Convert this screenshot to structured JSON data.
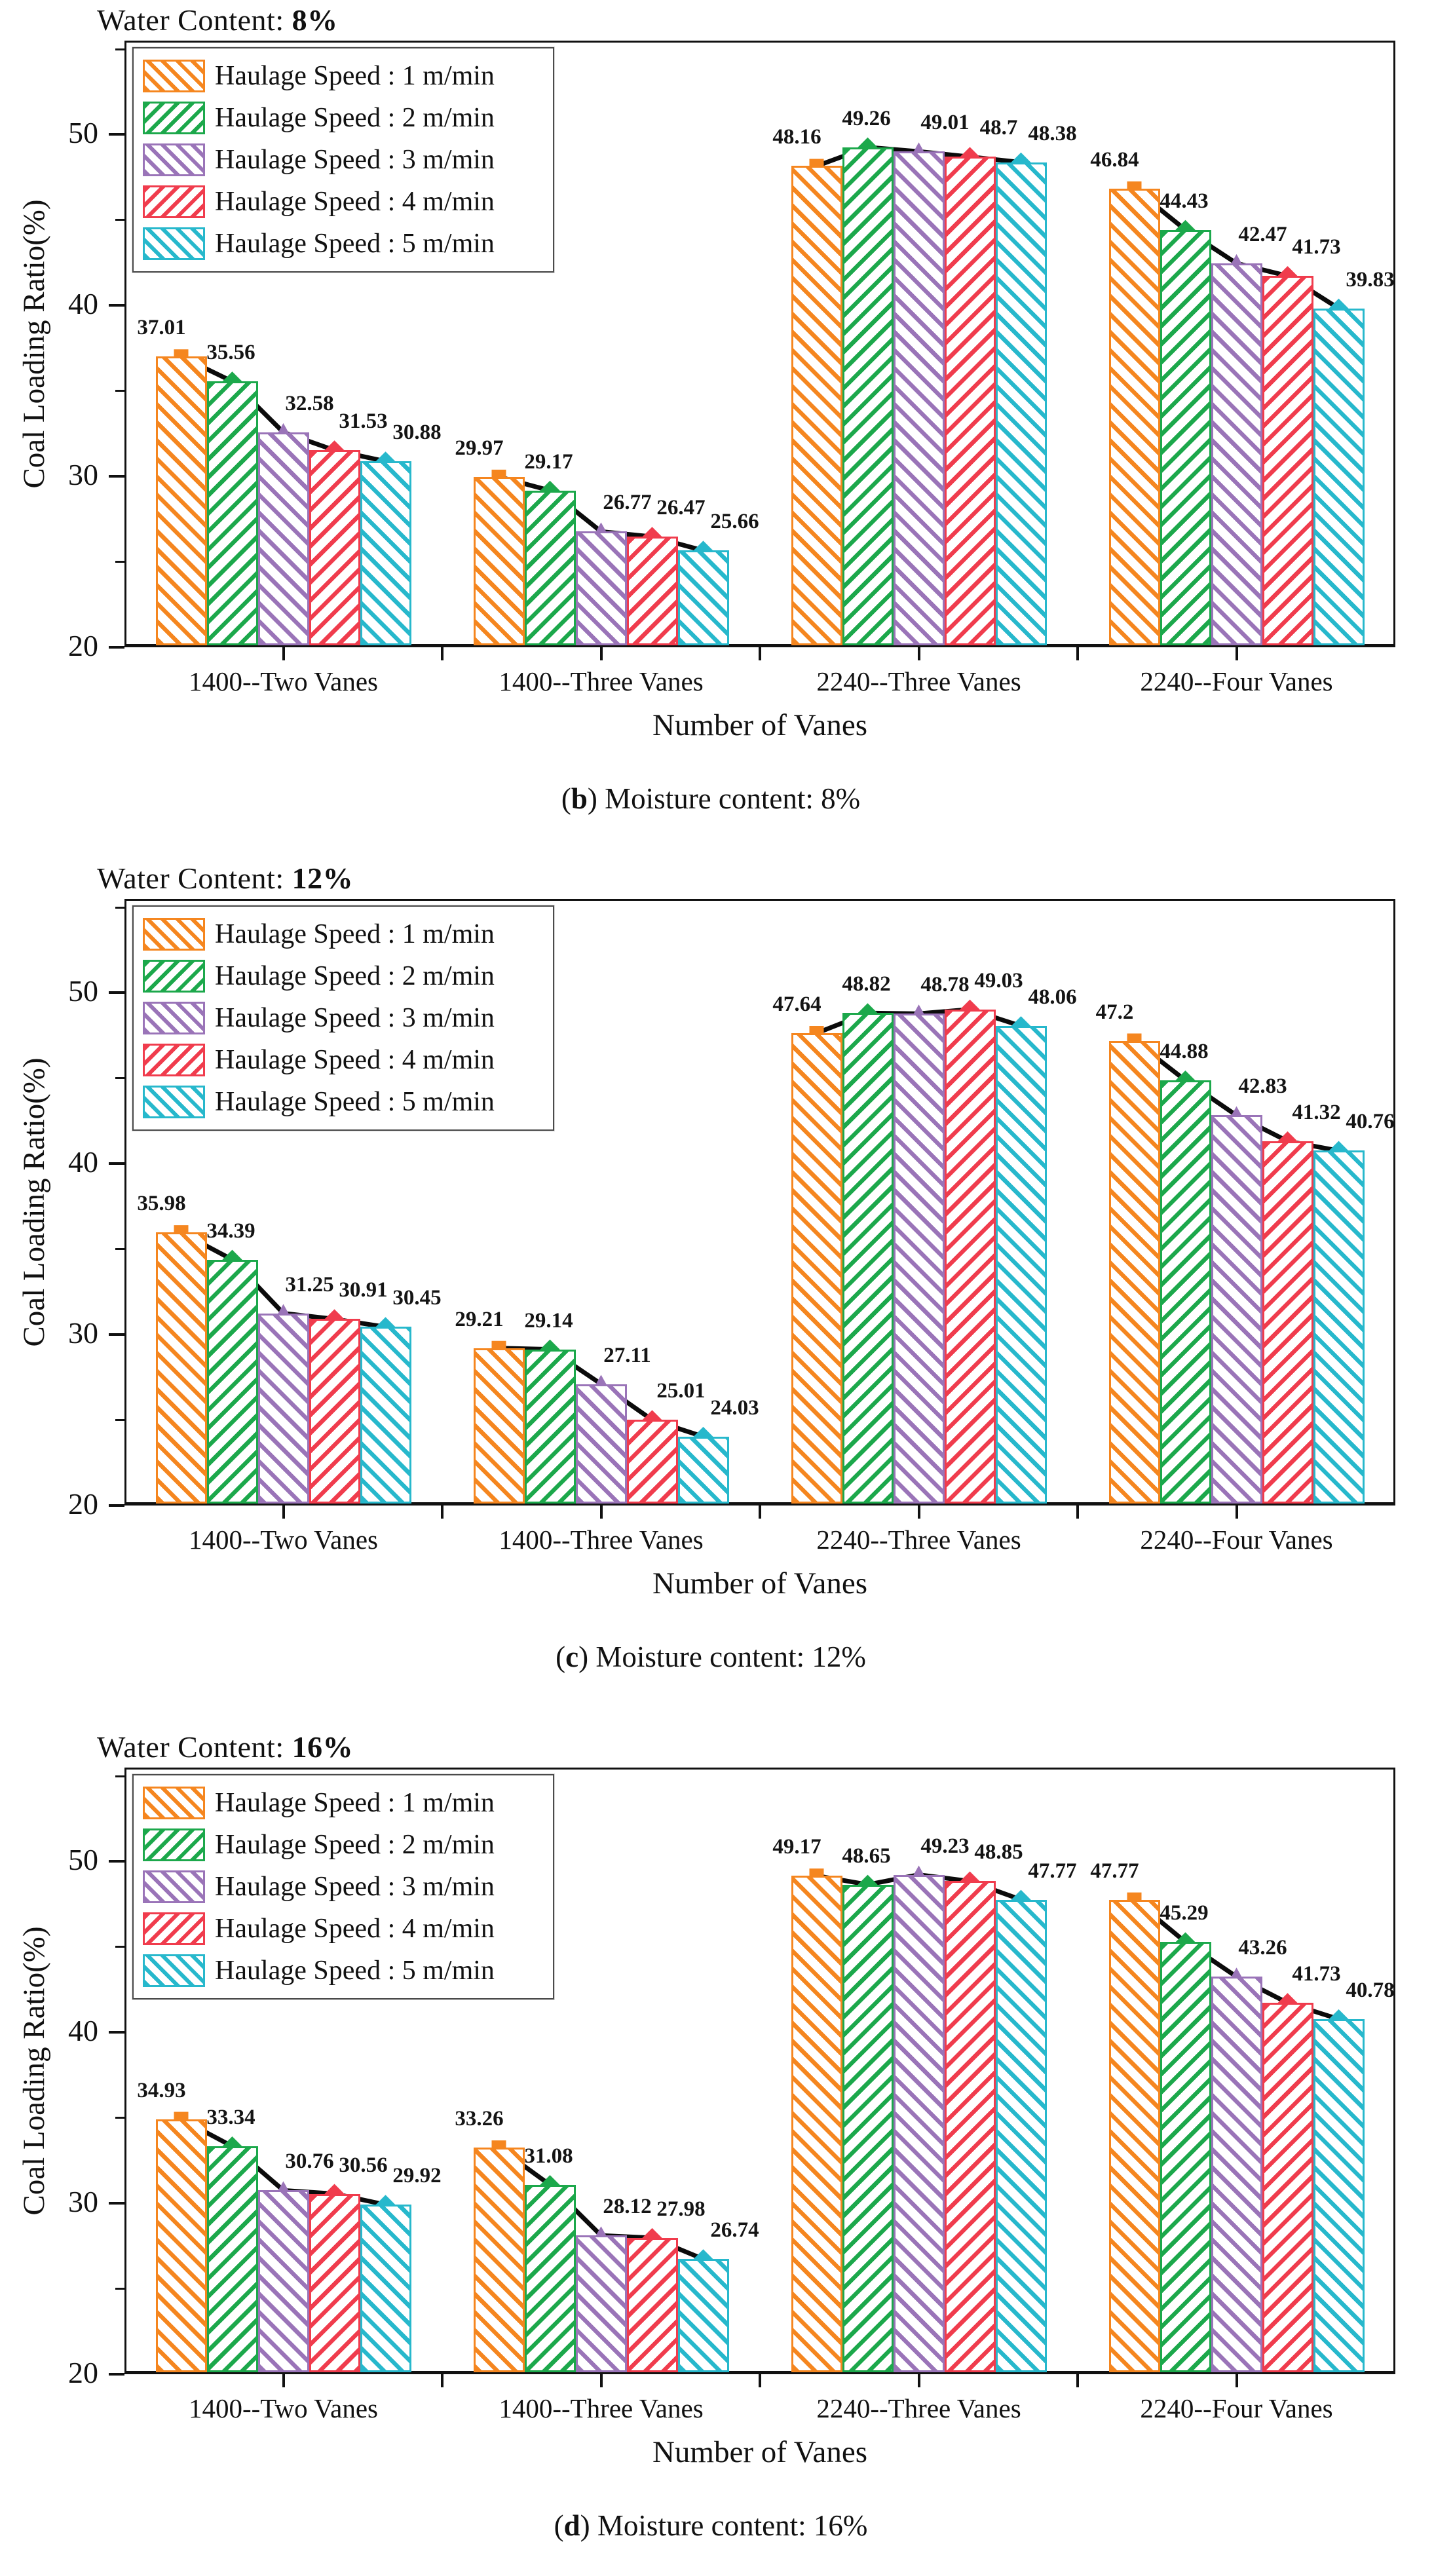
{
  "figure": {
    "captions": [
      {
        "pre": "(",
        "letter": "b",
        "rest": ") Moisture content: 8%"
      },
      {
        "pre": "(",
        "letter": "c",
        "rest": ") Moisture content: 12%"
      },
      {
        "pre": "(",
        "letter": "d",
        "rest": ") Moisture content: 16%"
      }
    ]
  },
  "chart_data": [
    {
      "type": "bar",
      "title": "Water Content: 8%",
      "title_plain": "Water Content: ",
      "title_bold": "8%",
      "xlabel": "Number of Vanes",
      "ylabel": "Coal Loading Ratio(%)",
      "ylim": [
        20,
        55.5
      ],
      "yticks_major": [
        20,
        30,
        40,
        50
      ],
      "yticks_minor": [
        25,
        35,
        45,
        55
      ],
      "grid": false,
      "legend_position": "upper-left",
      "overlay": "black trend line with markers across the 5 bars of each group",
      "categories": [
        "1400--Two Vanes",
        "1400--Three Vanes",
        "2240--Three Vanes",
        "2240--Four Vanes"
      ],
      "series": [
        {
          "name": "Haulage Speed : 1 m/min",
          "color": "#F5861F",
          "hatch": "\\",
          "marker": "square",
          "values": [
            37.01,
            29.97,
            48.16,
            46.84
          ]
        },
        {
          "name": "Haulage Speed : 2 m/min",
          "color": "#1CA84B",
          "hatch": "/",
          "marker": "diamond",
          "values": [
            35.56,
            29.17,
            49.26,
            44.43
          ]
        },
        {
          "name": "Haulage Speed : 3 m/min",
          "color": "#9A74B8",
          "hatch": "\\",
          "marker": "triangle",
          "values": [
            32.58,
            26.77,
            49.01,
            42.47
          ]
        },
        {
          "name": "Haulage Speed : 4 m/min",
          "color": "#F03C4D",
          "hatch": "/",
          "marker": "diamond",
          "values": [
            31.53,
            26.47,
            48.7,
            41.73
          ]
        },
        {
          "name": "Haulage Speed : 5 m/min",
          "color": "#27B8CC",
          "hatch": "\\",
          "marker": "diamond",
          "values": [
            30.88,
            25.66,
            48.38,
            39.83
          ]
        }
      ]
    },
    {
      "type": "bar",
      "title": "Water Content: 12%",
      "title_plain": "Water Content: ",
      "title_bold": "12%",
      "xlabel": "Number of Vanes",
      "ylabel": "Coal Loading Ratio(%)",
      "ylim": [
        20,
        55.5
      ],
      "yticks_major": [
        20,
        30,
        40,
        50
      ],
      "yticks_minor": [
        25,
        35,
        45,
        55
      ],
      "grid": false,
      "legend_position": "upper-left",
      "overlay": "black trend line with markers across the 5 bars of each group",
      "categories": [
        "1400--Two Vanes",
        "1400--Three Vanes",
        "2240--Three Vanes",
        "2240--Four Vanes"
      ],
      "series": [
        {
          "name": "Haulage Speed : 1 m/min",
          "color": "#F5861F",
          "hatch": "\\",
          "marker": "square",
          "values": [
            35.98,
            29.21,
            47.64,
            47.2
          ]
        },
        {
          "name": "Haulage Speed : 2 m/min",
          "color": "#1CA84B",
          "hatch": "/",
          "marker": "diamond",
          "values": [
            34.39,
            29.14,
            48.82,
            44.88
          ]
        },
        {
          "name": "Haulage Speed : 3 m/min",
          "color": "#9A74B8",
          "hatch": "\\",
          "marker": "triangle",
          "values": [
            31.25,
            27.11,
            48.78,
            42.83
          ]
        },
        {
          "name": "Haulage Speed : 4 m/min",
          "color": "#F03C4D",
          "hatch": "/",
          "marker": "diamond",
          "values": [
            30.91,
            25.01,
            49.03,
            41.32
          ]
        },
        {
          "name": "Haulage Speed : 5 m/min",
          "color": "#27B8CC",
          "hatch": "\\",
          "marker": "diamond",
          "values": [
            30.45,
            24.03,
            48.06,
            40.76
          ]
        }
      ]
    },
    {
      "type": "bar",
      "title": "Water Content: 16%",
      "title_plain": "Water Content: ",
      "title_bold": "16%",
      "xlabel": "Number of Vanes",
      "ylabel": "Coal Loading Ratio(%)",
      "ylim": [
        20,
        55.5
      ],
      "yticks_major": [
        20,
        30,
        40,
        50
      ],
      "yticks_minor": [
        25,
        35,
        45,
        55
      ],
      "grid": false,
      "legend_position": "upper-left",
      "overlay": "black trend line with markers across the 5 bars of each group",
      "categories": [
        "1400--Two Vanes",
        "1400--Three Vanes",
        "2240--Three Vanes",
        "2240--Four Vanes"
      ],
      "series": [
        {
          "name": "Haulage Speed : 1 m/min",
          "color": "#F5861F",
          "hatch": "\\",
          "marker": "square",
          "values": [
            34.93,
            33.26,
            49.17,
            47.77
          ]
        },
        {
          "name": "Haulage Speed : 2 m/min",
          "color": "#1CA84B",
          "hatch": "/",
          "marker": "diamond",
          "values": [
            33.34,
            31.08,
            48.65,
            45.29
          ]
        },
        {
          "name": "Haulage Speed : 3 m/min",
          "color": "#9A74B8",
          "hatch": "\\",
          "marker": "triangle",
          "values": [
            30.76,
            28.12,
            49.23,
            43.26
          ]
        },
        {
          "name": "Haulage Speed : 4 m/min",
          "color": "#F03C4D",
          "hatch": "/",
          "marker": "diamond",
          "values": [
            30.56,
            27.98,
            48.85,
            41.73
          ]
        },
        {
          "name": "Haulage Speed : 5 m/min",
          "color": "#27B8CC",
          "hatch": "\\",
          "marker": "diamond",
          "values": [
            29.92,
            26.74,
            47.77,
            40.78
          ]
        }
      ]
    }
  ]
}
